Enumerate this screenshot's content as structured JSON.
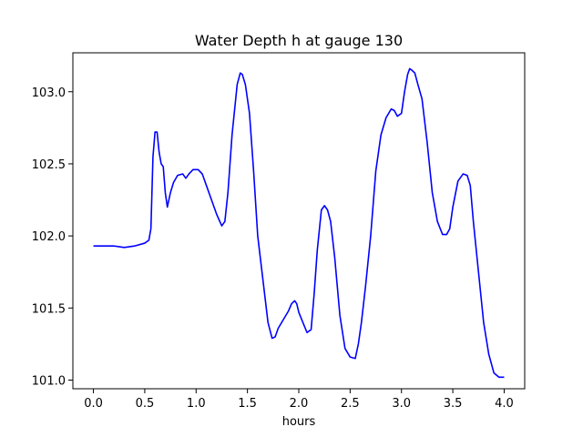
{
  "chart_data": {
    "type": "line",
    "title": "Water Depth h at gauge 130",
    "xlabel": "hours",
    "ylabel": "",
    "xlim": [
      -0.2,
      4.2
    ],
    "ylim": [
      100.94,
      103.27
    ],
    "xticks": [
      0.0,
      0.5,
      1.0,
      1.5,
      2.0,
      2.5,
      3.0,
      3.5,
      4.0
    ],
    "xtick_labels": [
      "0.0",
      "0.5",
      "1.0",
      "1.5",
      "2.0",
      "2.5",
      "3.0",
      "3.5",
      "4.0"
    ],
    "yticks": [
      101.0,
      101.5,
      102.0,
      102.5,
      103.0
    ],
    "ytick_labels": [
      "101.0",
      "101.5",
      "102.0",
      "102.5",
      "103.0"
    ],
    "grid": false,
    "series": [
      {
        "color": "#0000ff",
        "x": [
          0.0,
          0.2,
          0.3,
          0.4,
          0.5,
          0.54,
          0.56,
          0.57,
          0.58,
          0.6,
          0.62,
          0.64,
          0.66,
          0.68,
          0.7,
          0.72,
          0.75,
          0.78,
          0.82,
          0.87,
          0.9,
          0.93,
          0.97,
          1.02,
          1.06,
          1.1,
          1.15,
          1.2,
          1.25,
          1.28,
          1.31,
          1.35,
          1.4,
          1.43,
          1.45,
          1.48,
          1.52,
          1.56,
          1.6,
          1.65,
          1.7,
          1.74,
          1.77,
          1.8,
          1.85,
          1.9,
          1.93,
          1.96,
          1.98,
          2.0,
          2.04,
          2.08,
          2.12,
          2.15,
          2.18,
          2.22,
          2.25,
          2.28,
          2.31,
          2.35,
          2.4,
          2.45,
          2.5,
          2.55,
          2.58,
          2.61,
          2.65,
          2.7,
          2.75,
          2.8,
          2.85,
          2.9,
          2.93,
          2.96,
          3.0,
          3.03,
          3.06,
          3.08,
          3.1,
          3.13,
          3.16,
          3.2,
          3.25,
          3.3,
          3.35,
          3.4,
          3.44,
          3.47,
          3.5,
          3.55,
          3.6,
          3.64,
          3.67,
          3.7,
          3.75,
          3.8,
          3.85,
          3.9,
          3.95,
          4.0
        ],
        "y": [
          101.93,
          101.93,
          101.92,
          101.93,
          101.95,
          101.97,
          102.05,
          102.3,
          102.55,
          102.72,
          102.72,
          102.58,
          102.5,
          102.48,
          102.3,
          102.2,
          102.3,
          102.37,
          102.42,
          102.43,
          102.4,
          102.43,
          102.46,
          102.46,
          102.43,
          102.35,
          102.25,
          102.15,
          102.07,
          102.1,
          102.3,
          102.7,
          103.05,
          103.13,
          103.12,
          103.05,
          102.85,
          102.45,
          102.0,
          101.7,
          101.4,
          101.29,
          101.3,
          101.36,
          101.42,
          101.48,
          101.53,
          101.55,
          101.53,
          101.47,
          101.4,
          101.33,
          101.35,
          101.6,
          101.9,
          102.18,
          102.21,
          102.18,
          102.1,
          101.85,
          101.45,
          101.22,
          101.16,
          101.15,
          101.25,
          101.4,
          101.65,
          102.0,
          102.45,
          102.7,
          102.82,
          102.88,
          102.87,
          102.83,
          102.85,
          103.0,
          103.12,
          103.16,
          103.15,
          103.13,
          103.05,
          102.95,
          102.65,
          102.3,
          102.1,
          102.01,
          102.01,
          102.05,
          102.2,
          102.38,
          102.43,
          102.42,
          102.35,
          102.1,
          101.75,
          101.4,
          101.18,
          101.05,
          101.02,
          101.02
        ]
      }
    ]
  }
}
